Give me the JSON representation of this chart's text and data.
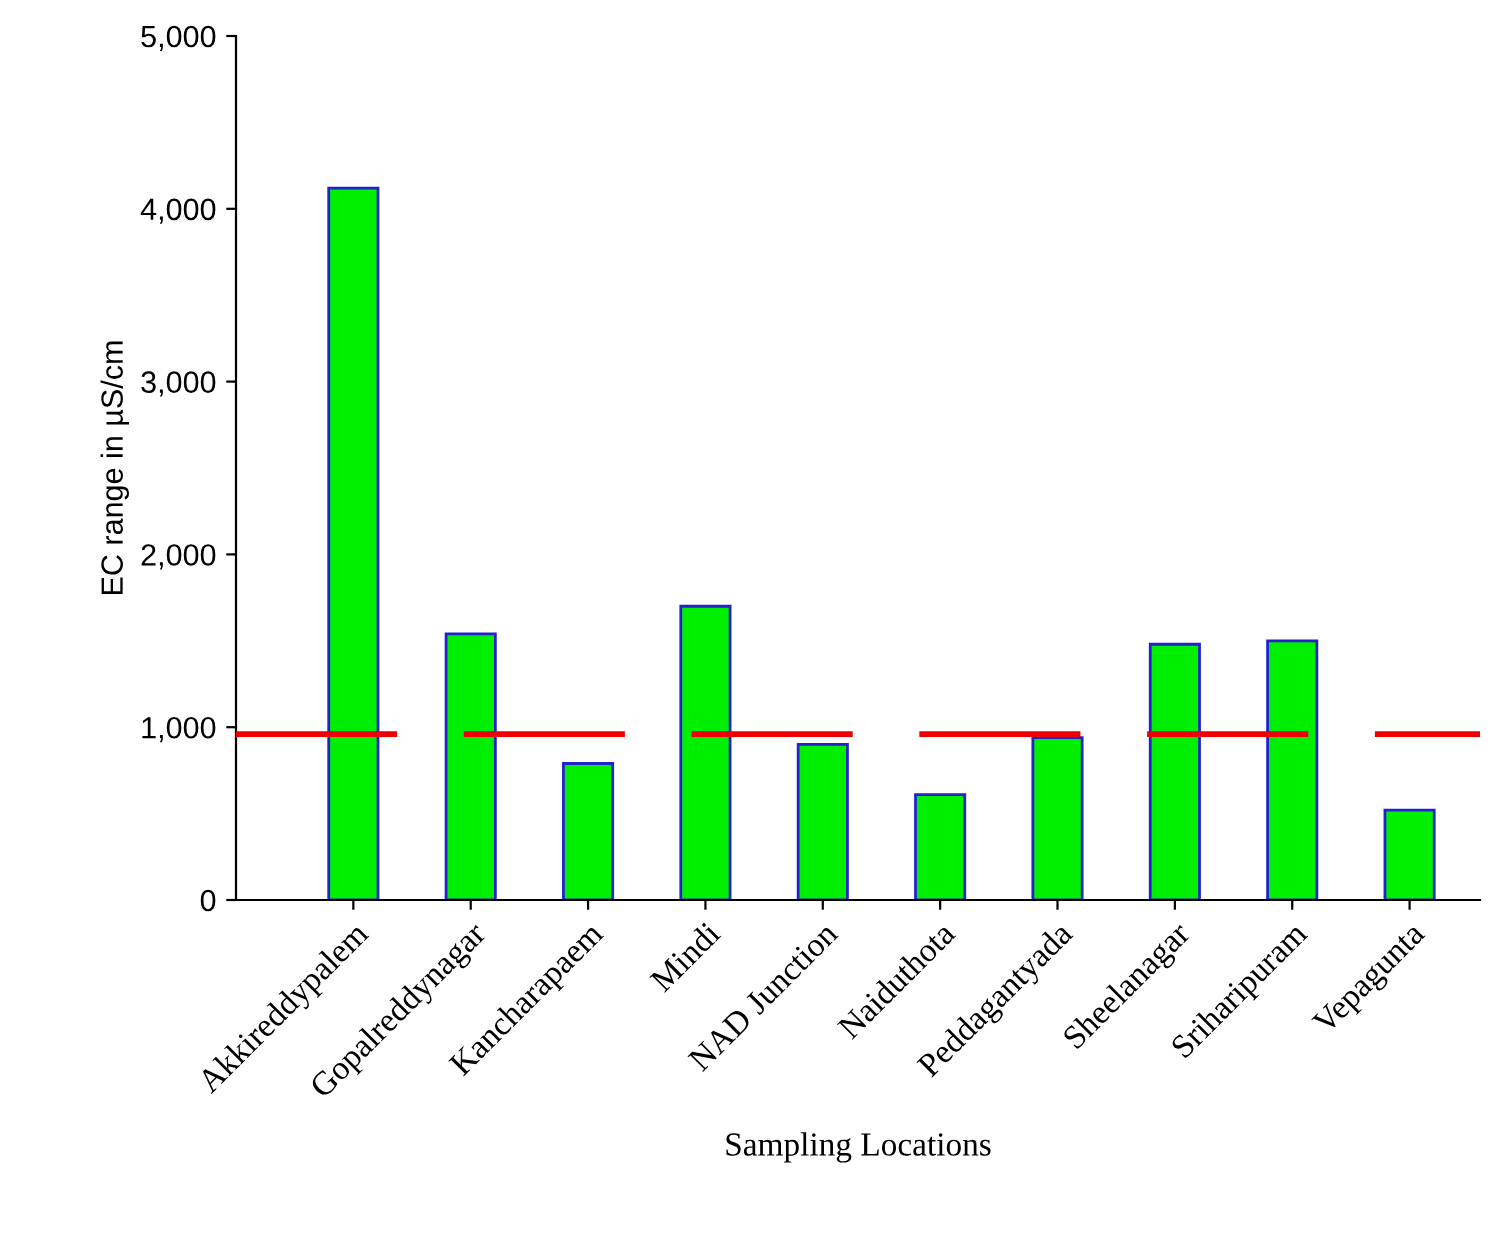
{
  "chart_data": {
    "type": "bar",
    "xlabel": "Sampling Locations",
    "ylabel": "EC range in µS/cm",
    "categories": [
      "Akkireddypalem",
      "Gopalreddynagar",
      "Kancharapaem",
      "Mindi",
      "NAD Junction",
      "Naiduthota",
      "Peddagantyada",
      "Sheelanagar",
      "Sriharipuram",
      "Vepagunta"
    ],
    "values": [
      4120,
      1540,
      790,
      1700,
      900,
      610,
      940,
      1480,
      1500,
      520
    ],
    "color": "#00ee00",
    "ylim": [
      0,
      5000
    ],
    "yticks": [
      {
        "value": 0,
        "label": "0"
      },
      {
        "value": 1000,
        "label": "1,000"
      },
      {
        "value": 2000,
        "label": "2,000"
      },
      {
        "value": 3000,
        "label": "3,000"
      },
      {
        "value": 4000,
        "label": "4,000"
      },
      {
        "value": 5000,
        "label": "5,000"
      }
    ],
    "ref_lines": [
      {
        "axis": "y",
        "value": 960,
        "label": null,
        "color": "#ee0000",
        "line_style": "dashed"
      }
    ],
    "grid": false,
    "legend": false
  }
}
